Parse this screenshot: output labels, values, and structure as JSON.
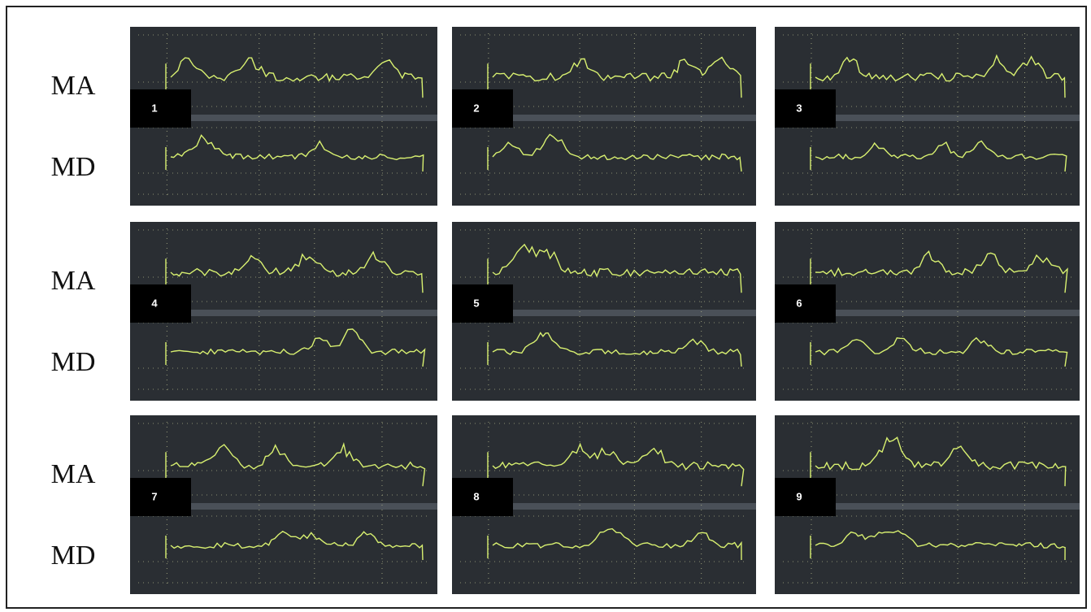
{
  "rows": [
    {
      "labels": [
        "MA",
        "MD"
      ]
    },
    {
      "labels": [
        "MA",
        "MD"
      ]
    },
    {
      "labels": [
        "MA",
        "MD"
      ]
    }
  ],
  "panels": [
    {
      "number": "1"
    },
    {
      "number": "2"
    },
    {
      "number": "3"
    },
    {
      "number": "4"
    },
    {
      "number": "5"
    },
    {
      "number": "6"
    },
    {
      "number": "7"
    },
    {
      "number": "8"
    },
    {
      "number": "9"
    }
  ]
}
